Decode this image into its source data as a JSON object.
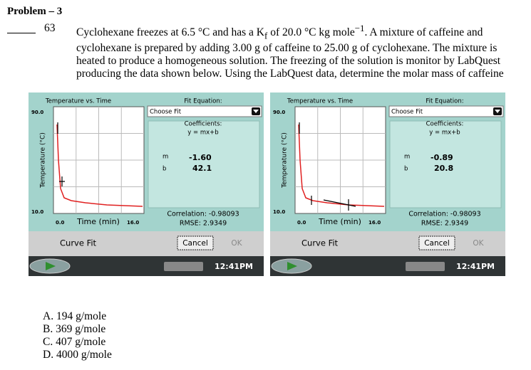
{
  "header": {
    "title": "Problem – 3",
    "number": "63"
  },
  "question": {
    "text_1": "Cyclohexane freezes at 6.5 °C and has a K",
    "kf_subscript": "f",
    "text_2": " of 20.0 °C kg mole",
    "exponent": "−1",
    "text_3": ".  A mixture of caffeine and cyclohexane is prepared by adding 3.00 g of caffeine to 25.00 g of cyclohexane.  The mixture is heated to produce a homogeneous solution.  The freezing of the solution is monitor by LabQuest producing the data shown below.  Using the LabQuest data, determine the molar mass of caffeine"
  },
  "screens": [
    {
      "graph_title": "Temperature vs. Time",
      "y_axis_label": "Temperature (°C)",
      "y_max": "90.0",
      "y_min": "10.0",
      "x_min": "0.0",
      "x_axis_label": "Time (min)",
      "x_max": "16.0",
      "fit_label": "Fit Equation:",
      "fit_choice": "Choose Fit",
      "coefficients_label": "Coefficients:",
      "equation": "y = mx+b",
      "m_label": "m",
      "b_label": "b",
      "m_value": "-1.60",
      "b_value": "42.1",
      "correlation": "Correlation: -0.98093",
      "rmse": "RMSE: 2.9349",
      "mode": "Curve Fit",
      "cancel": "Cancel",
      "ok": "OK",
      "clock": "12:41PM"
    },
    {
      "graph_title": "Temperature vs. Time",
      "y_axis_label": "Temperature (°C)",
      "y_max": "90.0",
      "y_min": "10.0",
      "x_min": "0.0",
      "x_axis_label": "Time (min)",
      "x_max": "16.0",
      "fit_label": "Fit Equation:",
      "fit_choice": "Choose Fit",
      "coefficients_label": "Coefficients:",
      "equation": "y = mx+b",
      "m_label": "m",
      "b_label": "b",
      "m_value": "-0.89",
      "b_value": "20.8",
      "correlation": "Correlation: -0.98093",
      "rmse": "RMSE: 2.9349",
      "mode": "Curve Fit",
      "cancel": "Cancel",
      "ok": "OK",
      "clock": "12:41PM"
    }
  ],
  "options": [
    "A.  194 g/mole",
    "B.  369 g/mole",
    "C.  407 g/mole",
    "D.  4000 g/mole"
  ]
}
